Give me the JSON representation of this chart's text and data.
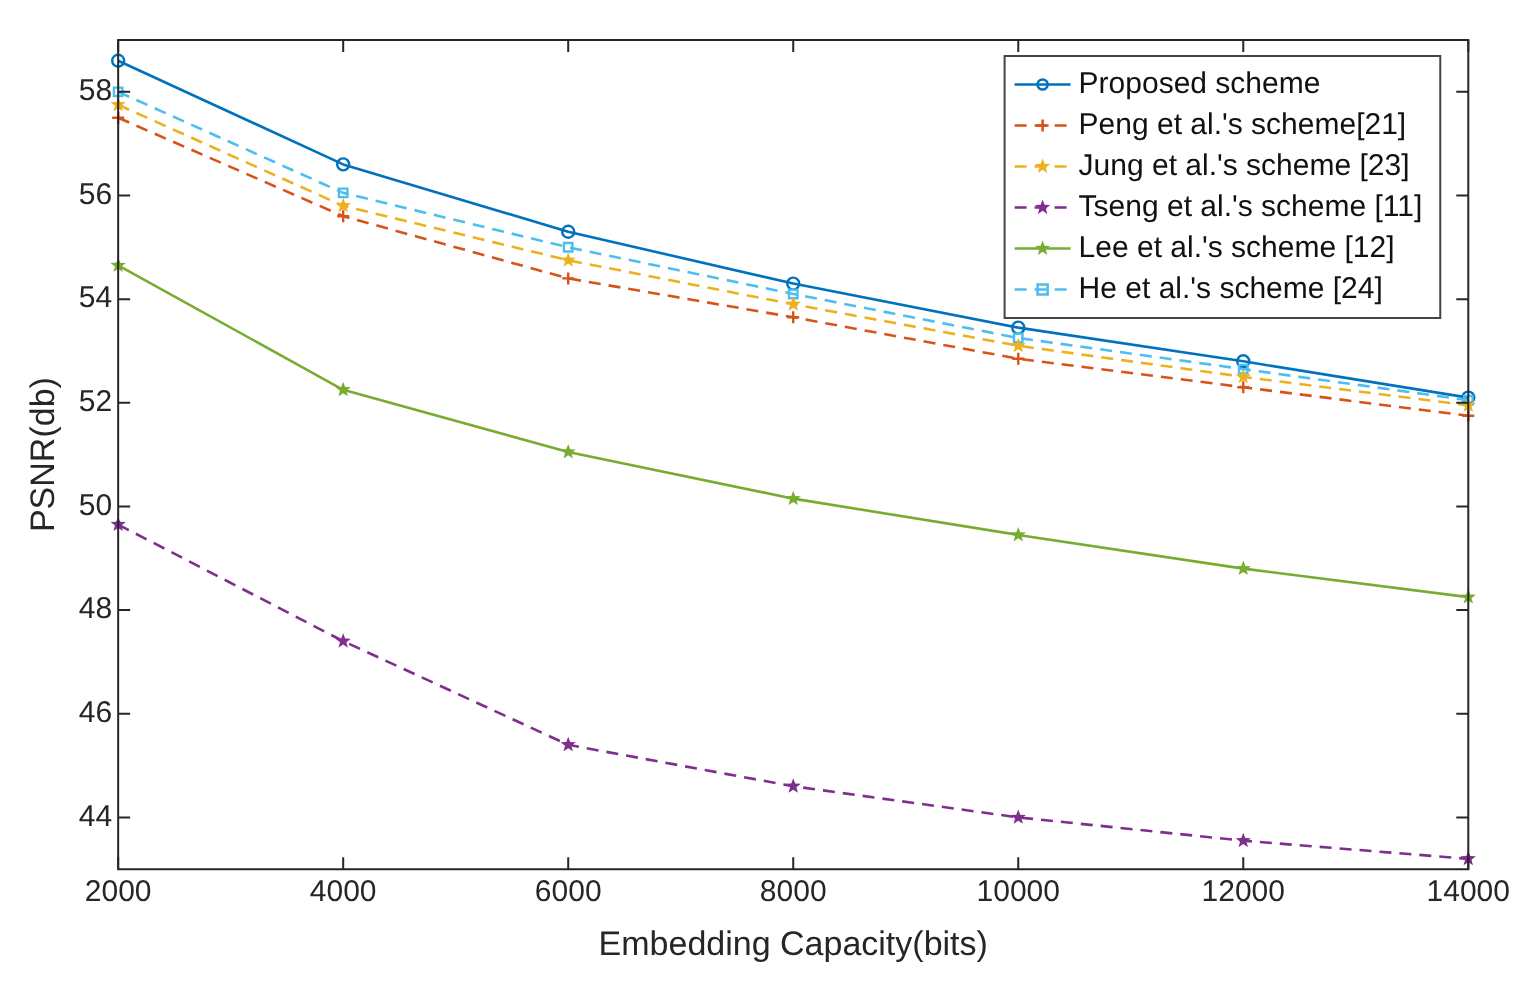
{
  "chart_data": {
    "type": "line",
    "xlabel": "Embedding Capacity(bits)",
    "ylabel": "PSNR(db)",
    "x": [
      2000,
      4000,
      6000,
      8000,
      10000,
      12000,
      14000
    ],
    "xlim": [
      2000,
      14000
    ],
    "xticks": [
      2000,
      4000,
      6000,
      8000,
      10000,
      12000,
      14000
    ],
    "ylim": [
      43,
      59
    ],
    "yticks": [
      44,
      46,
      48,
      50,
      52,
      54,
      56,
      58
    ],
    "grid": false,
    "legend": "top right",
    "series": [
      {
        "name": "Proposed scheme",
        "color": "#0072bd",
        "marker": "circle",
        "line_style": "solid",
        "values": [
          58.6,
          56.6,
          55.3,
          54.3,
          53.45,
          52.8,
          52.1
        ]
      },
      {
        "name": "Peng et al.'s scheme[21]",
        "color": "#d95319",
        "marker": "cross",
        "line_style": "dashed",
        "values": [
          57.5,
          55.6,
          54.4,
          53.65,
          52.85,
          52.3,
          51.75
        ]
      },
      {
        "name": "Jung et al.'s scheme [23]",
        "color": "#edb120",
        "marker": "star",
        "line_style": "dashed",
        "values": [
          57.75,
          55.8,
          54.75,
          53.9,
          53.1,
          52.5,
          51.95
        ]
      },
      {
        "name": "Tseng et al.'s scheme [11]",
        "color": "#7e2f8e",
        "marker": "star",
        "line_style": "dashed",
        "values": [
          49.65,
          47.4,
          45.4,
          44.6,
          44.0,
          43.55,
          43.2
        ]
      },
      {
        "name": "Lee et al.'s scheme [12]",
        "color": "#77ac30",
        "marker": "star",
        "line_style": "solid",
        "values": [
          54.65,
          52.25,
          51.05,
          50.15,
          49.45,
          48.8,
          48.25
        ]
      },
      {
        "name": "He et al.'s scheme [24]",
        "color": "#4dbeee",
        "marker": "square",
        "line_style": "dashed",
        "values": [
          58.0,
          56.05,
          55.0,
          54.1,
          53.25,
          52.65,
          52.05
        ]
      }
    ]
  }
}
